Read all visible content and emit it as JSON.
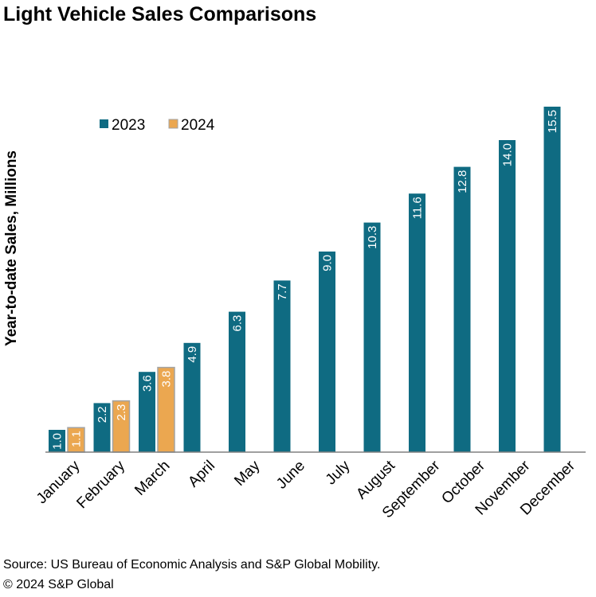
{
  "header": {
    "title": "Light Vehicle Sales Comparisons"
  },
  "footer": {
    "source": "Source: US Bureau of Economic Analysis and S&P Global Mobility.",
    "copyright": "© 2024 S&P Global"
  },
  "colors": {
    "series_2023": "#0f6b82",
    "series_2024": "#eba750",
    "series_2024_border": "#a3a3a3",
    "axis": "#808080"
  },
  "chart_data": {
    "type": "bar",
    "title": "Light Vehicle Sales Comparisons",
    "xlabel": "",
    "ylabel": "Year-to-date Sales, Millions",
    "ylim": [
      0,
      15.5
    ],
    "grid": false,
    "legend": "top-left",
    "categories": [
      "January",
      "February",
      "March",
      "April",
      "May",
      "June",
      "July",
      "August",
      "September",
      "October",
      "November",
      "December"
    ],
    "series": [
      {
        "name": "2023",
        "values": [
          1.0,
          2.2,
          3.6,
          4.9,
          6.3,
          7.7,
          9.0,
          10.3,
          11.6,
          12.8,
          14.0,
          15.5
        ],
        "labels": [
          "1.0",
          "2.2",
          "3.6",
          "4.9",
          "6.3",
          "7.7",
          "9.0",
          "10.3",
          "11.6",
          "12.8",
          "14.0",
          "15.5"
        ]
      },
      {
        "name": "2024",
        "values": [
          1.1,
          2.3,
          3.8,
          null,
          null,
          null,
          null,
          null,
          null,
          null,
          null,
          null
        ],
        "labels": [
          "1.1",
          "2.3",
          "3.8",
          null,
          null,
          null,
          null,
          null,
          null,
          null,
          null,
          null
        ]
      }
    ]
  }
}
